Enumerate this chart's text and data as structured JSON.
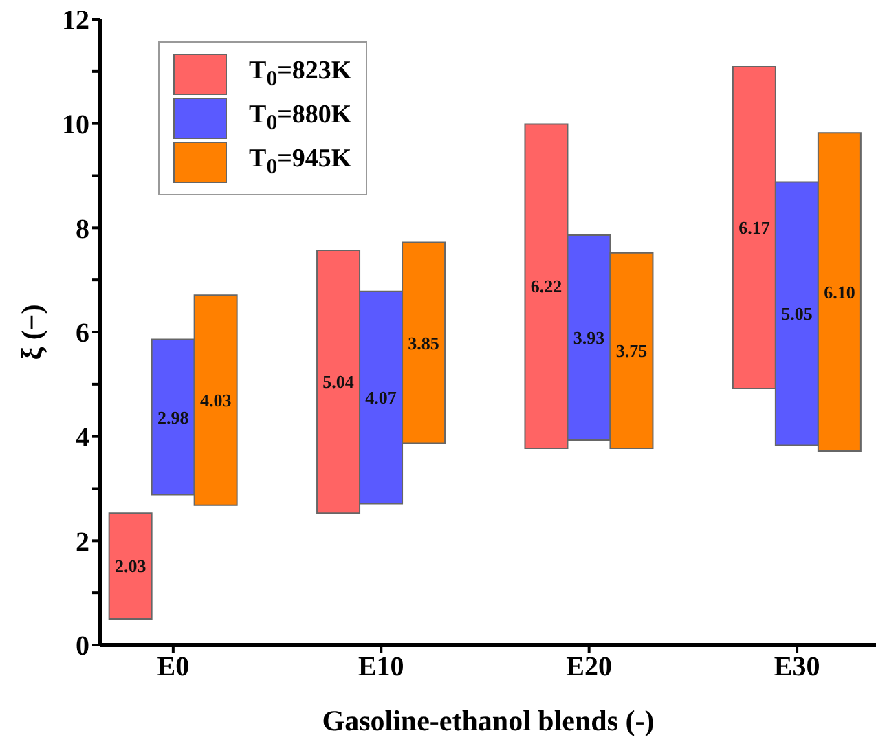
{
  "chart_data": {
    "type": "bar",
    "xlabel": "Gasoline-ethanol blends (-)",
    "ylabel": "ξ (−)",
    "categories": [
      "E0",
      "E10",
      "E20",
      "E30"
    ],
    "series": [
      {
        "name": "T$_{0}$=823K",
        "color": "#ff6464",
        "values": [
          2.03,
          5.04,
          6.22,
          6.17
        ],
        "base": [
          0.5,
          2.53,
          3.77,
          4.92
        ]
      },
      {
        "name": "T$_{0}$=880K",
        "color": "#5a5aff",
        "values": [
          2.98,
          4.07,
          3.93,
          5.05
        ],
        "base": [
          2.88,
          2.71,
          3.93,
          3.83
        ]
      },
      {
        "name": "T$_{0}$=945K",
        "color": "#ff8000",
        "values": [
          4.03,
          3.85,
          3.75,
          6.1
        ],
        "base": [
          2.68,
          3.87,
          3.77,
          3.72
        ],
        "value_labels": [
          "4.03",
          "3.85",
          "3.75",
          "6.10"
        ]
      }
    ],
    "ylim": [
      0,
      12
    ],
    "yticks": [
      0,
      {
        "value": 1,
        "label": null
      },
      2,
      {
        "value": 3,
        "label": null
      },
      4,
      {
        "value": 5,
        "label": null
      },
      6,
      {
        "value": 7,
        "label": null
      },
      8,
      {
        "value": 9,
        "label": null
      },
      10,
      {
        "value": 11,
        "label": null
      },
      12
    ],
    "data_labels": true,
    "legend": "top left",
    "grid": false
  }
}
